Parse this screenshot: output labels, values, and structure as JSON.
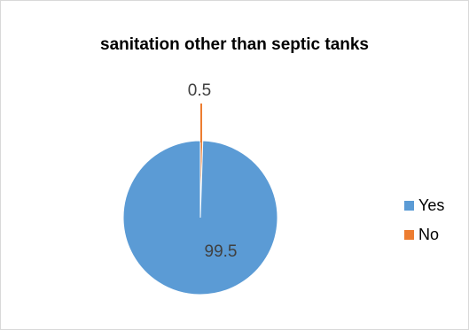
{
  "chart_data": {
    "type": "pie",
    "title": "sanitation other than septic tanks",
    "categories": [
      "Yes",
      "No"
    ],
    "values": [
      99.5,
      0.5
    ],
    "colors": [
      "#5B9BD5",
      "#ED7D31"
    ],
    "data_labels": [
      "99.5",
      "0.5"
    ],
    "legend_position": "right"
  }
}
